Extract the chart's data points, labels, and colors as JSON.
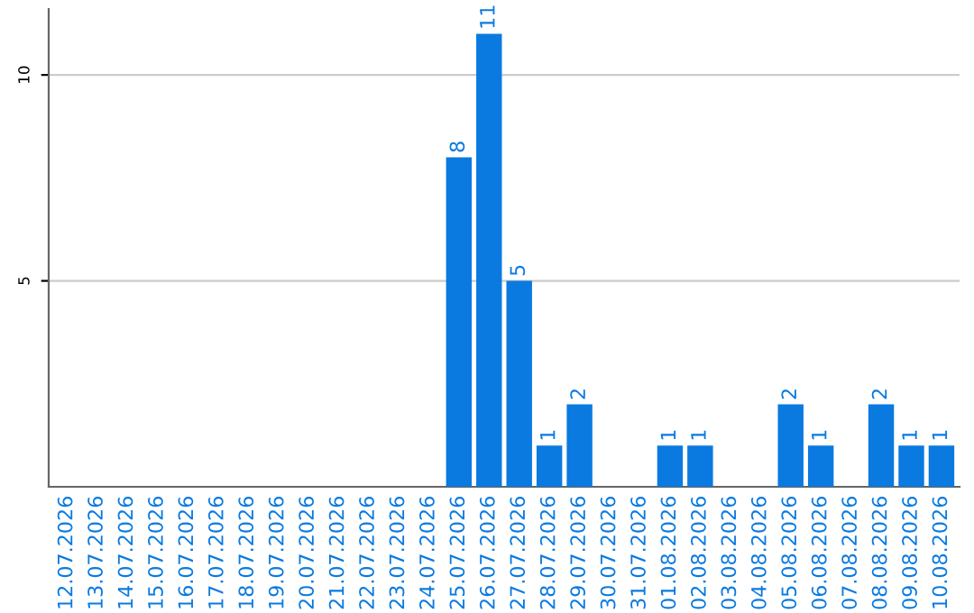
{
  "chart_data": {
    "type": "bar",
    "categories": [
      "12.07.2026",
      "13.07.2026",
      "14.07.2026",
      "15.07.2026",
      "16.07.2026",
      "17.07.2026",
      "18.07.2026",
      "19.07.2026",
      "20.07.2026",
      "21.07.2026",
      "22.07.2026",
      "23.07.2026",
      "24.07.2026",
      "25.07.2026",
      "26.07.2026",
      "27.07.2026",
      "28.07.2026",
      "29.07.2026",
      "30.07.2026",
      "31.07.2026",
      "01.08.2026",
      "02.08.2026",
      "03.08.2026",
      "04.08.2026",
      "05.08.2026",
      "06.08.2026",
      "07.08.2026",
      "08.08.2026",
      "09.08.2026",
      "10.08.2026"
    ],
    "values": [
      0,
      0,
      0,
      0,
      0,
      0,
      0,
      0,
      0,
      0,
      0,
      0,
      0,
      8,
      11,
      5,
      1,
      2,
      0,
      0,
      1,
      1,
      0,
      0,
      2,
      1,
      0,
      2,
      1,
      1
    ],
    "value_labels": [
      null,
      null,
      null,
      null,
      null,
      null,
      null,
      null,
      null,
      null,
      null,
      null,
      null,
      "8",
      "11",
      "5",
      "1",
      "2",
      null,
      null,
      "1",
      "1",
      null,
      null,
      "2",
      "1",
      null,
      "2",
      "1",
      "1"
    ],
    "color": "#0a7ae0",
    "ylim": [
      0,
      11.6
    ],
    "yticks": [
      5,
      10
    ],
    "grid": "y"
  }
}
